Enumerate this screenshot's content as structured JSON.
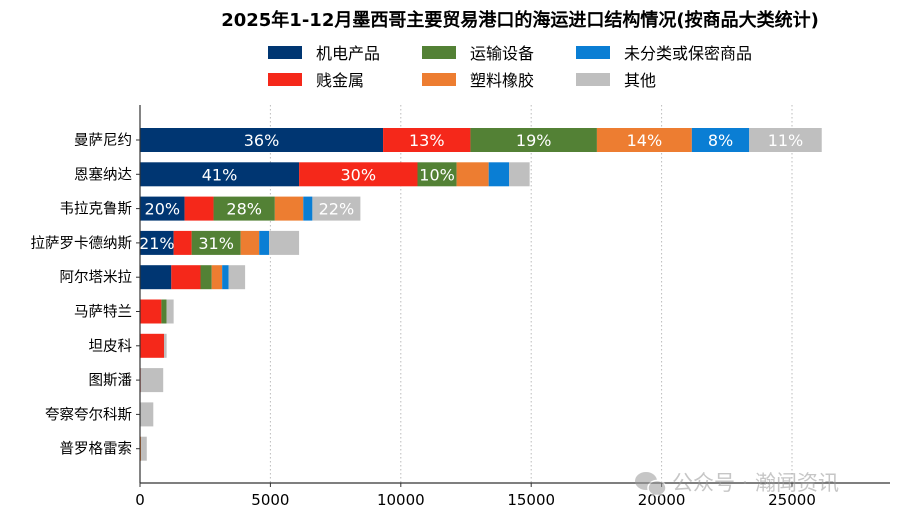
{
  "chart_data": {
    "type": "bar",
    "orientation": "horizontal",
    "stacked": true,
    "title": "2025年1-12月墨西哥主要贸易港口的海运进口结构情况(按商品大类统计)",
    "xlabel": "",
    "ylabel": "",
    "xlim": [
      0,
      28700
    ],
    "xticks": [
      0,
      5000,
      10000,
      15000,
      20000,
      25000
    ],
    "grid": "vertical dotted",
    "legend_position": "top",
    "categories": [
      "曼萨尼约",
      "恩塞纳达",
      "韦拉克鲁斯",
      "拉萨罗卡德纳斯",
      "阿尔塔米拉",
      "马萨特兰",
      "坦皮科",
      "图斯潘",
      "夸察夸尔科斯",
      "普罗格雷索"
    ],
    "series": [
      {
        "name": "机电产品",
        "color": "#003672",
        "values": [
          9320,
          6100,
          1710,
          1290,
          1200,
          0,
          0,
          0,
          0,
          0
        ],
        "labels": [
          "36%",
          "41%",
          "20%",
          "21%",
          null,
          null,
          null,
          null,
          null,
          null
        ]
      },
      {
        "name": "贱金属",
        "color": "#F5281A",
        "values": [
          3350,
          4540,
          1110,
          690,
          1120,
          820,
          920,
          30,
          0,
          20
        ],
        "labels": [
          "13%",
          "30%",
          null,
          null,
          null,
          null,
          null,
          null,
          null,
          null
        ]
      },
      {
        "name": "运输设备",
        "color": "#538135",
        "values": [
          4850,
          1500,
          2350,
          1880,
          430,
          200,
          0,
          0,
          0,
          0
        ],
        "labels": [
          "19%",
          "10%",
          "28%",
          "31%",
          null,
          null,
          null,
          null,
          null,
          null
        ]
      },
      {
        "name": "塑料橡胶",
        "color": "#ED7D31",
        "values": [
          3640,
          1230,
          1090,
          710,
          400,
          0,
          0,
          0,
          0,
          20
        ],
        "labels": [
          "14%",
          null,
          null,
          null,
          null,
          null,
          null,
          null,
          null,
          null
        ]
      },
      {
        "name": "未分类或保密商品",
        "color": "#0A7ED4",
        "values": [
          2200,
          780,
          350,
          380,
          250,
          0,
          0,
          0,
          0,
          0
        ],
        "labels": [
          "8%",
          null,
          null,
          null,
          null,
          null,
          null,
          null,
          null,
          null
        ]
      },
      {
        "name": "其他",
        "color": "#BFBFBF",
        "values": [
          2780,
          790,
          1840,
          1150,
          630,
          270,
          100,
          860,
          510,
          220
        ],
        "labels": [
          "11%",
          null,
          "22%",
          null,
          null,
          null,
          null,
          null,
          null,
          null
        ]
      }
    ],
    "legend_order": [
      0,
      2,
      4,
      1,
      3,
      5
    ]
  },
  "watermark": "公众号 · 瀚闻资讯"
}
